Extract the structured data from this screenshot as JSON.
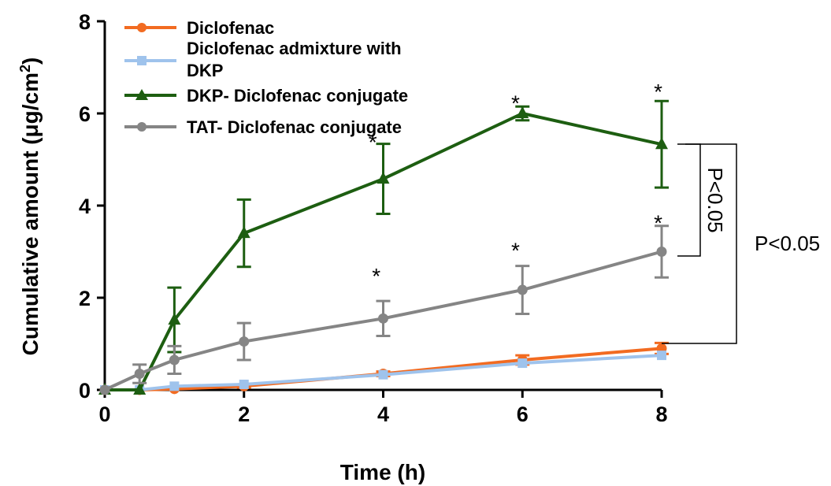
{
  "chart_data": {
    "type": "line",
    "title": "",
    "xlabel": "Time (h)",
    "ylabel_main": "Cumulative amount (μg/cm",
    "ylabel_sup": "2",
    "ylabel_close": ")",
    "xlim": [
      0,
      8
    ],
    "ylim": [
      0,
      8
    ],
    "xticks": [
      0,
      2,
      4,
      6,
      8
    ],
    "yticks": [
      0,
      2,
      4,
      6,
      8
    ],
    "grid": false,
    "legend_position": "top-left",
    "series": [
      {
        "name": "Diclofenac",
        "color": "#f26b21",
        "marker": "circle",
        "x": [
          0,
          0.5,
          1,
          2,
          4,
          6,
          8
        ],
        "y": [
          0,
          0,
          0.02,
          0.08,
          0.35,
          0.65,
          0.9
        ],
        "err": [
          0,
          0,
          0,
          0.03,
          0.05,
          0.1,
          0.12
        ]
      },
      {
        "name_line1": "Diclofenac admixture with",
        "name_line2": "DKP",
        "color": "#9fc3ec",
        "marker": "square",
        "x": [
          0,
          0.5,
          1,
          2,
          4,
          6,
          8
        ],
        "y": [
          0,
          0,
          0.08,
          0.12,
          0.33,
          0.58,
          0.75
        ],
        "err": [
          0,
          0,
          0,
          0,
          0,
          0,
          0
        ]
      },
      {
        "name": "DKP- Diclofenac conjugate",
        "color": "#1d5e11",
        "marker": "triangle",
        "x": [
          0,
          0.5,
          1,
          2,
          4,
          6,
          8
        ],
        "y": [
          0,
          0,
          1.52,
          3.4,
          4.58,
          6.0,
          5.33
        ],
        "err": [
          0,
          0,
          0.7,
          0.73,
          0.76,
          0.15,
          0.94
        ]
      },
      {
        "name": "TAT- Diclofenac conjugate",
        "color": "#858585",
        "marker": "circle",
        "x": [
          0,
          0.5,
          1,
          2,
          4,
          6,
          8
        ],
        "y": [
          0,
          0.35,
          0.65,
          1.05,
          1.55,
          2.17,
          3.0
        ],
        "err": [
          0,
          0.2,
          0.3,
          0.4,
          0.38,
          0.52,
          0.56
        ]
      }
    ],
    "significance_stars": [
      {
        "x": 3.85,
        "y": 5.45,
        "text": "*"
      },
      {
        "x": 5.9,
        "y": 6.3,
        "text": "*"
      },
      {
        "x": 7.95,
        "y": 6.55,
        "text": "*"
      },
      {
        "x": 3.9,
        "y": 2.55,
        "text": "*"
      },
      {
        "x": 5.9,
        "y": 3.1,
        "text": "*"
      },
      {
        "x": 7.95,
        "y": 3.7,
        "text": "*"
      }
    ],
    "annotations": [
      {
        "text": "P<0.05",
        "orientation": "vertical"
      },
      {
        "text": "P<0.05",
        "orientation": "horizontal"
      }
    ]
  }
}
